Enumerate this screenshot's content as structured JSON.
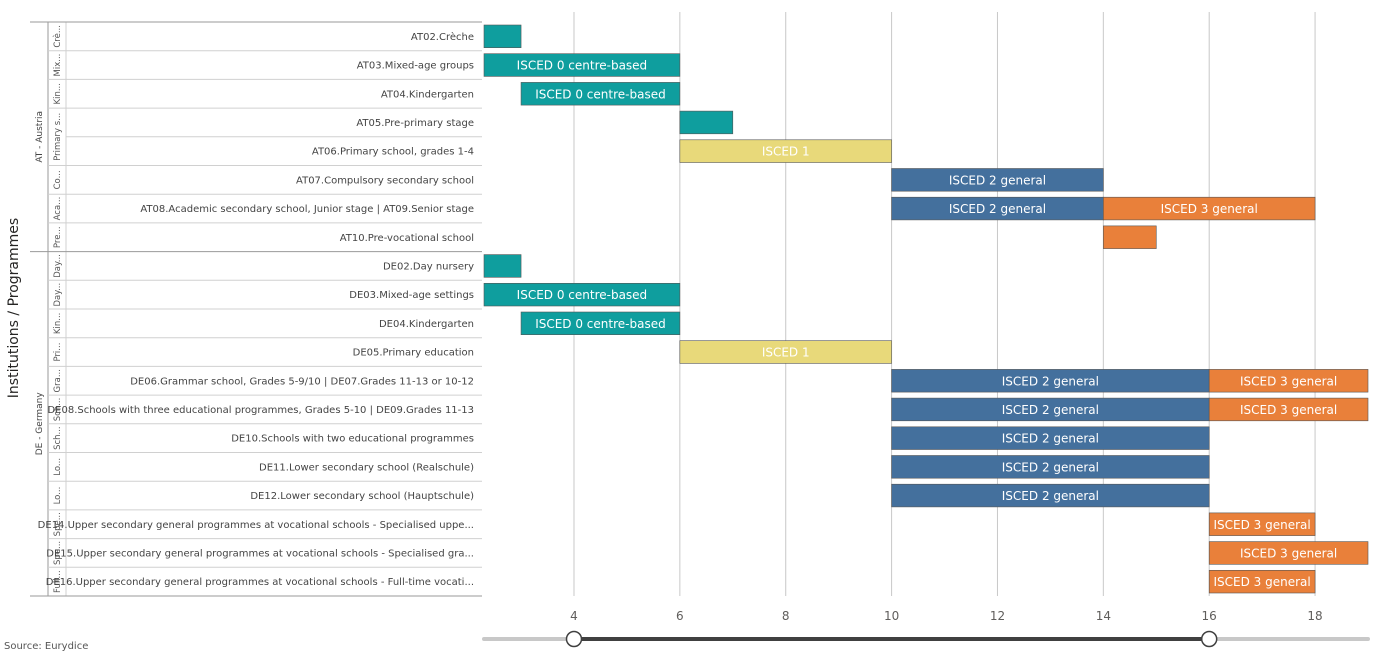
{
  "page": {
    "y_axis_title": "Institutions / Programmes",
    "footer_note": "Source: Eurydice"
  },
  "colors": {
    "isced0": "#0f9e9e",
    "isced1": "#e8d97a",
    "isced2": "#44709d",
    "isced3": "#e9803a",
    "grid": "#c8c8c8",
    "border": "#9a9a9a",
    "slider_track": "#c8c8c8",
    "slider_range": "#404040"
  },
  "slider": {
    "min": 2.3,
    "max": 19,
    "from": 4,
    "to": 16
  },
  "chart_data": {
    "type": "bar",
    "orientation": "horizontal-range",
    "x_ticks": [
      4,
      6,
      8,
      10,
      12,
      14,
      16,
      18
    ],
    "xlim": [
      2.3,
      19
    ],
    "ylabel": "Institutions / Programmes",
    "groups": [
      {
        "name": "AT - Austria",
        "rows": [
          {
            "sub": "Crè...",
            "label": "AT02.Crèche",
            "bars": [
              {
                "start": 2.3,
                "end": 3,
                "level": "isced0",
                "text": ""
              }
            ]
          },
          {
            "sub": "Mix...",
            "label": "AT03.Mixed-age groups",
            "bars": [
              {
                "start": 2.3,
                "end": 6,
                "level": "isced0",
                "text": "ISCED 0 centre-based"
              }
            ]
          },
          {
            "sub": "Kin...",
            "label": "AT04.Kindergarten",
            "bars": [
              {
                "start": 3,
                "end": 6,
                "level": "isced0",
                "text": "ISCED 0 centre-based"
              }
            ]
          },
          {
            "sub": "Primary s...",
            "label": "AT05.Pre-primary stage",
            "bars": [
              {
                "start": 6,
                "end": 7,
                "level": "isced0",
                "text": ""
              }
            ]
          },
          {
            "sub": "",
            "label": "AT06.Primary school, grades 1-4",
            "bars": [
              {
                "start": 6,
                "end": 10,
                "level": "isced1",
                "text": "ISCED 1"
              }
            ]
          },
          {
            "sub": "Co...",
            "label": "AT07.Compulsory secondary school",
            "bars": [
              {
                "start": 10,
                "end": 14,
                "level": "isced2",
                "text": "ISCED 2 general"
              }
            ]
          },
          {
            "sub": "Aca...",
            "label": "AT08.Academic secondary school, Junior stage | AT09.Senior stage",
            "bars": [
              {
                "start": 10,
                "end": 14,
                "level": "isced2",
                "text": "ISCED 2 general"
              },
              {
                "start": 14,
                "end": 18,
                "level": "isced3",
                "text": "ISCED 3 general"
              }
            ]
          },
          {
            "sub": "Pre...",
            "label": "AT10.Pre-vocational school",
            "bars": [
              {
                "start": 14,
                "end": 15,
                "level": "isced3",
                "text": ""
              }
            ]
          }
        ]
      },
      {
        "name": "DE - Germany",
        "rows": [
          {
            "sub": "Day...",
            "label": "DE02.Day nursery",
            "bars": [
              {
                "start": 2.3,
                "end": 3,
                "level": "isced0",
                "text": ""
              }
            ]
          },
          {
            "sub": "Day...",
            "label": "DE03.Mixed-age settings",
            "bars": [
              {
                "start": 2.3,
                "end": 6,
                "level": "isced0",
                "text": "ISCED 0 centre-based"
              }
            ]
          },
          {
            "sub": "Kin...",
            "label": "DE04.Kindergarten",
            "bars": [
              {
                "start": 3,
                "end": 6,
                "level": "isced0",
                "text": "ISCED 0 centre-based"
              }
            ]
          },
          {
            "sub": "Pri...",
            "label": "DE05.Primary education",
            "bars": [
              {
                "start": 6,
                "end": 10,
                "level": "isced1",
                "text": "ISCED 1"
              }
            ]
          },
          {
            "sub": "Gra...",
            "label": "DE06.Grammar school, Grades 5-9/10 | DE07.Grades 11-13 or 10-12",
            "bars": [
              {
                "start": 10,
                "end": 16,
                "level": "isced2",
                "text": "ISCED 2 general"
              },
              {
                "start": 16,
                "end": 19,
                "level": "isced3",
                "text": "ISCED 3 general"
              }
            ]
          },
          {
            "sub": "Sch...",
            "label": "DE08.Schools with three educational programmes, Grades 5-10 | DE09.Grades 11-13",
            "bars": [
              {
                "start": 10,
                "end": 16,
                "level": "isced2",
                "text": "ISCED 2 general"
              },
              {
                "start": 16,
                "end": 19,
                "level": "isced3",
                "text": "ISCED 3 general"
              }
            ]
          },
          {
            "sub": "Sch...",
            "label": "DE10.Schools with two educational programmes",
            "bars": [
              {
                "start": 10,
                "end": 16,
                "level": "isced2",
                "text": "ISCED 2 general"
              }
            ]
          },
          {
            "sub": "Lo...",
            "label": "DE11.Lower secondary school (Realschule)",
            "bars": [
              {
                "start": 10,
                "end": 16,
                "level": "isced2",
                "text": "ISCED 2 general"
              }
            ]
          },
          {
            "sub": "Lo...",
            "label": "DE12.Lower secondary school (Hauptschule)",
            "bars": [
              {
                "start": 10,
                "end": 16,
                "level": "isced2",
                "text": "ISCED 2 general"
              }
            ]
          },
          {
            "sub": "Spe...",
            "label": "DE14.Upper secondary general programmes at vocational schools - Specialised uppe...",
            "bars": [
              {
                "start": 16,
                "end": 18,
                "level": "isced3",
                "text": "ISCED 3 general"
              }
            ]
          },
          {
            "sub": "Spe...",
            "label": "DE15.Upper secondary general programmes at vocational schools - Specialised gra...",
            "bars": [
              {
                "start": 16,
                "end": 19,
                "level": "isced3",
                "text": "ISCED 3 general"
              }
            ]
          },
          {
            "sub": "Full...",
            "label": "DE16.Upper secondary general programmes at vocational schools - Full-time vocati...",
            "bars": [
              {
                "start": 16,
                "end": 18,
                "level": "isced3",
                "text": "ISCED 3 general"
              }
            ]
          }
        ]
      }
    ]
  }
}
